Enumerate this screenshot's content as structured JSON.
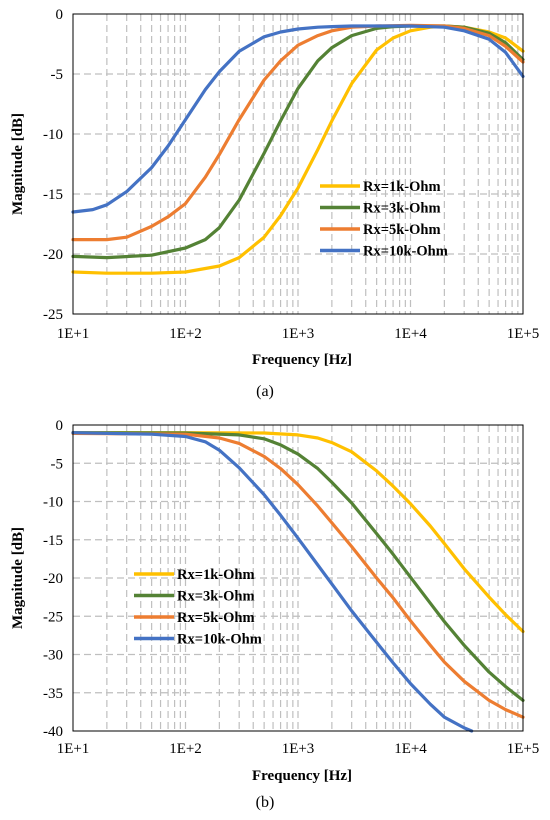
{
  "colors": {
    "grid": "#bfbfbf",
    "axis": "#000000"
  },
  "chart_data": [
    {
      "type": "line",
      "caption": "(a)",
      "xlabel": "Frequency [Hz]",
      "ylabel": "Magnitude [dB]",
      "xscale": "log",
      "xlim": [
        10,
        100000
      ],
      "ylim": [
        -25,
        0
      ],
      "grid": true,
      "legend": "right",
      "xticklabels": [
        "1E+1",
        "1E+2",
        "1E+3",
        "1E+4",
        "1E+5"
      ],
      "yticklabels": [
        "0",
        "-5",
        "-10",
        "-15",
        "-20",
        "-25"
      ],
      "series": [
        {
          "name": "Rx=1k-Ohm",
          "color": "#FFC000",
          "x": [
            10,
            20,
            50,
            100,
            200,
            300,
            500,
            700,
            1000,
            1500,
            2000,
            3000,
            5000,
            7000,
            10000,
            15000,
            20000,
            30000,
            50000,
            70000,
            100000
          ],
          "y": [
            -21.5,
            -21.6,
            -21.6,
            -21.5,
            -21.0,
            -20.3,
            -18.6,
            -16.8,
            -14.5,
            -11.3,
            -8.9,
            -5.8,
            -3.0,
            -2.0,
            -1.4,
            -1.1,
            -1.0,
            -1.1,
            -1.5,
            -2.0,
            -3.1
          ]
        },
        {
          "name": "Rx=3k-Ohm",
          "color": "#548235",
          "x": [
            10,
            20,
            50,
            100,
            150,
            200,
            300,
            500,
            700,
            1000,
            1500,
            2000,
            3000,
            5000,
            7000,
            10000,
            20000,
            30000,
            50000,
            70000,
            100000
          ],
          "y": [
            -20.2,
            -20.3,
            -20.1,
            -19.5,
            -18.8,
            -17.8,
            -15.5,
            -11.6,
            -8.9,
            -6.2,
            -3.9,
            -2.8,
            -1.8,
            -1.2,
            -1.05,
            -1.0,
            -1.0,
            -1.1,
            -1.6,
            -2.4,
            -3.8
          ]
        },
        {
          "name": "Rx=5k-Ohm",
          "color": "#ED7D31",
          "x": [
            10,
            20,
            30,
            50,
            70,
            100,
            150,
            200,
            300,
            500,
            700,
            1000,
            1500,
            2000,
            3000,
            5000,
            10000,
            20000,
            30000,
            50000,
            70000,
            100000
          ],
          "y": [
            -18.8,
            -18.8,
            -18.6,
            -17.7,
            -16.9,
            -15.8,
            -13.6,
            -11.7,
            -8.8,
            -5.5,
            -3.9,
            -2.6,
            -1.8,
            -1.4,
            -1.1,
            -1.0,
            -0.95,
            -1.0,
            -1.2,
            -1.8,
            -2.7,
            -4.0
          ]
        },
        {
          "name": "Rx=10k-Ohm",
          "color": "#4472C4",
          "x": [
            10,
            15,
            20,
            30,
            50,
            70,
            100,
            150,
            200,
            300,
            500,
            700,
            1000,
            1500,
            2000,
            3000,
            5000,
            10000,
            20000,
            30000,
            50000,
            70000,
            100000
          ],
          "y": [
            -16.5,
            -16.3,
            -15.9,
            -14.8,
            -12.8,
            -11.0,
            -8.8,
            -6.3,
            -4.8,
            -3.1,
            -1.9,
            -1.5,
            -1.25,
            -1.1,
            -1.05,
            -1.0,
            -1.0,
            -1.0,
            -1.1,
            -1.4,
            -2.1,
            -3.2,
            -5.2
          ]
        }
      ]
    },
    {
      "type": "line",
      "caption": "(b)",
      "xlabel": "Frequency [Hz]",
      "ylabel": "Magnitude [dB]",
      "xscale": "log",
      "xlim": [
        10,
        100000
      ],
      "ylim": [
        -40,
        0
      ],
      "grid": true,
      "legend": "left",
      "xticklabels": [
        "1E+1",
        "1E+2",
        "1E+3",
        "1E+4",
        "1E+5"
      ],
      "yticklabels": [
        "0",
        "-5",
        "-10",
        "-15",
        "-20",
        "-25",
        "-30",
        "-35",
        "-40"
      ],
      "series": [
        {
          "name": "Rx=1k-Ohm",
          "color": "#FFC000",
          "x": [
            10,
            100,
            500,
            1000,
            1500,
            2000,
            3000,
            5000,
            7000,
            10000,
            15000,
            20000,
            30000,
            50000,
            70000,
            100000
          ],
          "y": [
            -1.0,
            -1.0,
            -1.05,
            -1.3,
            -1.7,
            -2.3,
            -3.5,
            -6.0,
            -8.0,
            -10.3,
            -13.2,
            -15.5,
            -18.8,
            -22.5,
            -24.8,
            -27.0
          ]
        },
        {
          "name": "Rx=3k-Ohm",
          "color": "#548235",
          "x": [
            10,
            100,
            300,
            500,
            700,
            1000,
            1500,
            2000,
            3000,
            5000,
            7000,
            10000,
            15000,
            20000,
            30000,
            50000,
            70000,
            100000
          ],
          "y": [
            -1.0,
            -1.05,
            -1.3,
            -1.8,
            -2.6,
            -3.8,
            -5.7,
            -7.5,
            -10.2,
            -14.2,
            -16.9,
            -19.9,
            -23.3,
            -25.7,
            -28.8,
            -32.3,
            -34.2,
            -36.0
          ]
        },
        {
          "name": "Rx=5k-Ohm",
          "color": "#ED7D31",
          "x": [
            10,
            100,
            200,
            300,
            500,
            700,
            1000,
            1500,
            2000,
            3000,
            5000,
            7000,
            10000,
            15000,
            20000,
            30000,
            50000,
            70000,
            100000
          ],
          "y": [
            -1.1,
            -1.2,
            -1.7,
            -2.4,
            -4.1,
            -5.7,
            -7.8,
            -10.6,
            -12.8,
            -15.9,
            -20.0,
            -22.6,
            -25.6,
            -28.8,
            -31.0,
            -33.5,
            -36.0,
            -37.2,
            -38.2
          ]
        },
        {
          "name": "Rx=10k-Ohm",
          "color": "#4472C4",
          "x": [
            10,
            50,
            100,
            150,
            200,
            300,
            500,
            700,
            1000,
            1500,
            2000,
            3000,
            5000,
            7000,
            10000,
            15000,
            20000,
            30000,
            35000
          ],
          "y": [
            -1.0,
            -1.2,
            -1.5,
            -2.2,
            -3.3,
            -5.6,
            -9.1,
            -11.8,
            -14.8,
            -18.3,
            -20.8,
            -24.3,
            -28.4,
            -31.1,
            -33.8,
            -36.5,
            -38.2,
            -39.6,
            -40.0
          ]
        }
      ]
    }
  ]
}
